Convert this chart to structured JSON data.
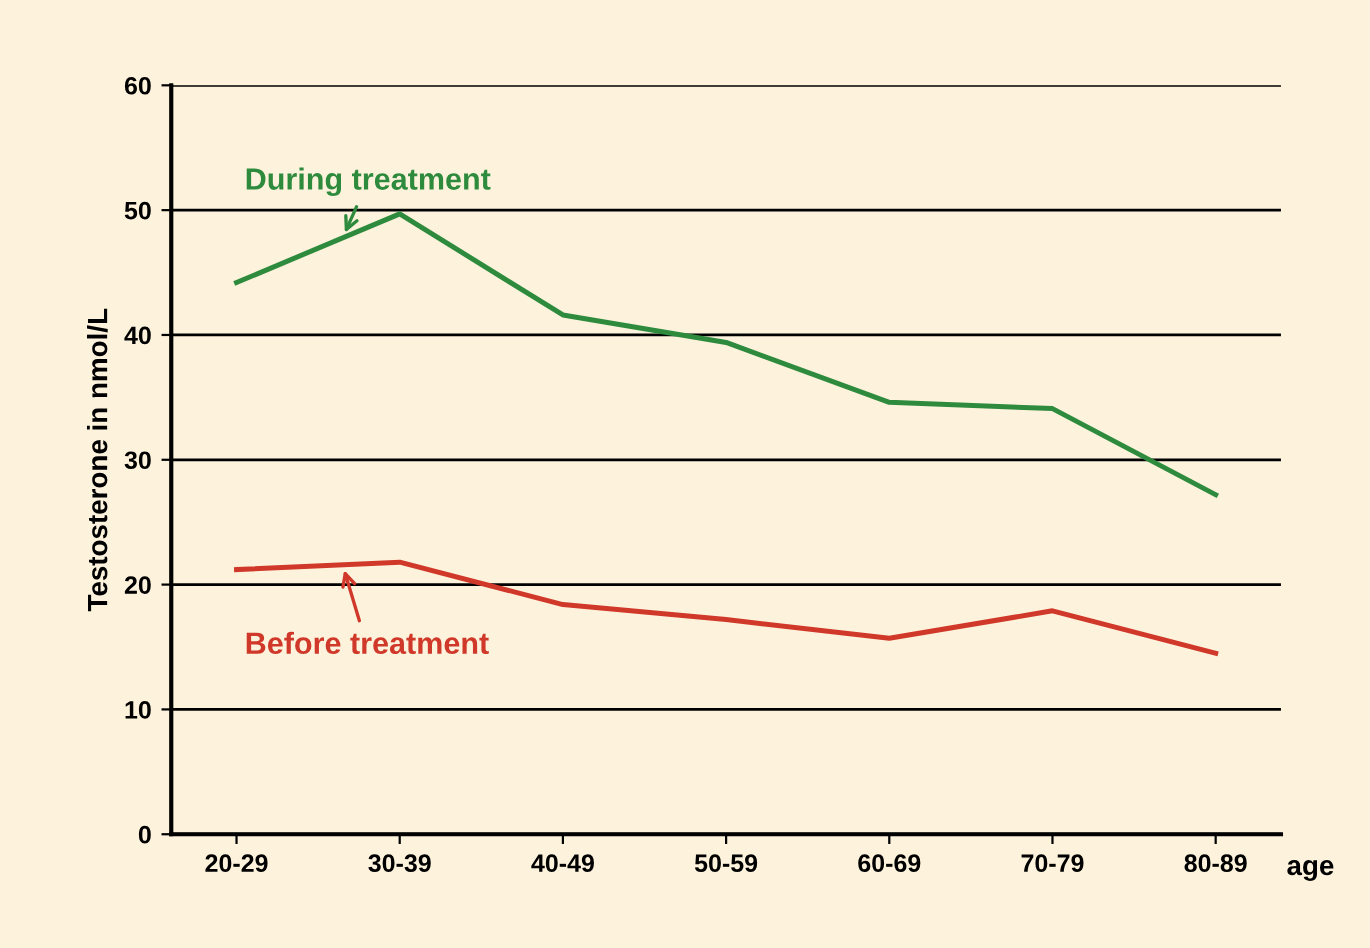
{
  "chart_data": {
    "type": "line",
    "ylabel": "Testosterone in nmol/L",
    "xlabel": "age",
    "categories": [
      "20-29",
      "30-39",
      "40-49",
      "50-59",
      "60-69",
      "70-79",
      "80-89"
    ],
    "series": [
      {
        "name": "During treatment",
        "color": "#2e8b3e",
        "values": [
          44.2,
          49.7,
          41.6,
          39.4,
          34.6,
          34.1,
          27.2
        ]
      },
      {
        "name": "Before treatment",
        "color": "#d0382a",
        "values": [
          21.2,
          21.8,
          18.4,
          17.2,
          15.7,
          17.9,
          14.5
        ]
      }
    ],
    "ylim": [
      0,
      60
    ],
    "yticks": [
      0,
      10,
      20,
      30,
      40,
      50,
      60
    ],
    "grid": "y",
    "marker": "none",
    "line_style": "solid"
  }
}
